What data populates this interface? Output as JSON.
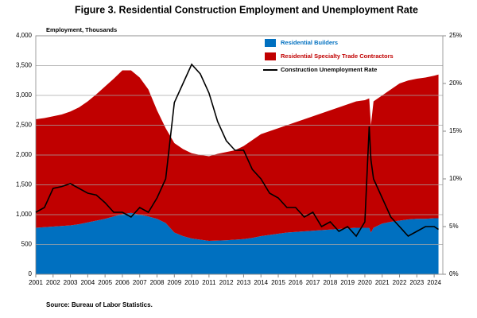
{
  "chart_data": {
    "type": "area",
    "stacked": true,
    "title": "Figure 3. Residential Construction  Employment and Unemployment Rate",
    "y_label": "Employment, Thousands",
    "source": "Source: Bureau of Labor Statistics.",
    "x": [
      2001,
      2001.5,
      2002,
      2002.5,
      2003,
      2003.5,
      2004,
      2004.5,
      2005,
      2005.5,
      2006,
      2006.5,
      2007,
      2007.5,
      2008,
      2008.5,
      2009,
      2009.5,
      2010,
      2010.5,
      2011,
      2011.5,
      2012,
      2012.5,
      2013,
      2013.5,
      2014,
      2014.5,
      2015,
      2015.5,
      2016,
      2016.5,
      2017,
      2017.5,
      2018,
      2018.5,
      2019,
      2019.5,
      2020,
      2020.25,
      2020.35,
      2020.5,
      2021,
      2021.5,
      2022,
      2022.5,
      2023,
      2023.5,
      2024,
      2024.25
    ],
    "series": [
      {
        "name": "Residential Builders",
        "color": "#0070c0",
        "values": [
          780,
          790,
          800,
          810,
          820,
          840,
          870,
          900,
          930,
          970,
          1010,
          1030,
          1000,
          970,
          930,
          860,
          700,
          640,
          600,
          580,
          560,
          565,
          570,
          580,
          590,
          610,
          640,
          660,
          680,
          700,
          710,
          720,
          730,
          740,
          750,
          760,
          770,
          780,
          780,
          780,
          700,
          780,
          850,
          880,
          900,
          920,
          930,
          930,
          940,
          940
        ]
      },
      {
        "name": "Residential Specialty Trade Contractors",
        "color": "#c00000",
        "values": [
          1820,
          1830,
          1850,
          1870,
          1910,
          1960,
          2030,
          2120,
          2220,
          2310,
          2410,
          2390,
          2300,
          2130,
          1820,
          1590,
          1500,
          1460,
          1430,
          1420,
          1420,
          1455,
          1480,
          1500,
          1560,
          1640,
          1710,
          1740,
          1770,
          1800,
          1840,
          1880,
          1920,
          1960,
          2000,
          2040,
          2080,
          2120,
          2140,
          2170,
          1800,
          2120,
          2150,
          2220,
          2300,
          2330,
          2350,
          2370,
          2390,
          2410
        ]
      },
      {
        "name": "Construction Unemployment Rate",
        "color": "#000000",
        "type": "line",
        "axis": "y2",
        "values": [
          6.5,
          7,
          9,
          9.2,
          9.5,
          9,
          8.5,
          8.3,
          7.5,
          6.5,
          6.5,
          6.0,
          7,
          6.5,
          8,
          10,
          18,
          20,
          22,
          21,
          19,
          16,
          14,
          13,
          13,
          11,
          10,
          8.5,
          8,
          7,
          7,
          6,
          6.5,
          5,
          5.5,
          4.5,
          5,
          4.0,
          5.5,
          15.5,
          12,
          10,
          8,
          6,
          5,
          4,
          4.5,
          5,
          5,
          4.7
        ]
      }
    ],
    "xlim": [
      2001,
      2024.5
    ],
    "xticks": [
      2001,
      2002,
      2003,
      2004,
      2005,
      2006,
      2007,
      2008,
      2009,
      2010,
      2011,
      2012,
      2013,
      2014,
      2015,
      2016,
      2017,
      2018,
      2019,
      2020,
      2021,
      2022,
      2023,
      2024
    ],
    "ylim": [
      0,
      4000
    ],
    "yticks": [
      0,
      500,
      {
        "value": 1000,
        "label": "1,000"
      },
      {
        "value": 1500,
        "label": "1,500"
      },
      {
        "value": 2000,
        "label": "2,000"
      },
      {
        "value": 2500,
        "label": "2,500"
      },
      {
        "value": 3000,
        "label": "3,000"
      },
      {
        "value": 3500,
        "label": "3,500"
      },
      {
        "value": 4000,
        "label": "4,000"
      }
    ],
    "y2lim": [
      0,
      25
    ],
    "y2ticks": [
      {
        "value": 0,
        "label": "0%"
      },
      {
        "value": 5,
        "label": "5%"
      },
      {
        "value": 10,
        "label": "10%"
      },
      {
        "value": 15,
        "label": "15%"
      },
      {
        "value": 20,
        "label": "20%"
      },
      {
        "value": 25,
        "label": "25%"
      }
    ],
    "grid": true,
    "legend": "top"
  }
}
